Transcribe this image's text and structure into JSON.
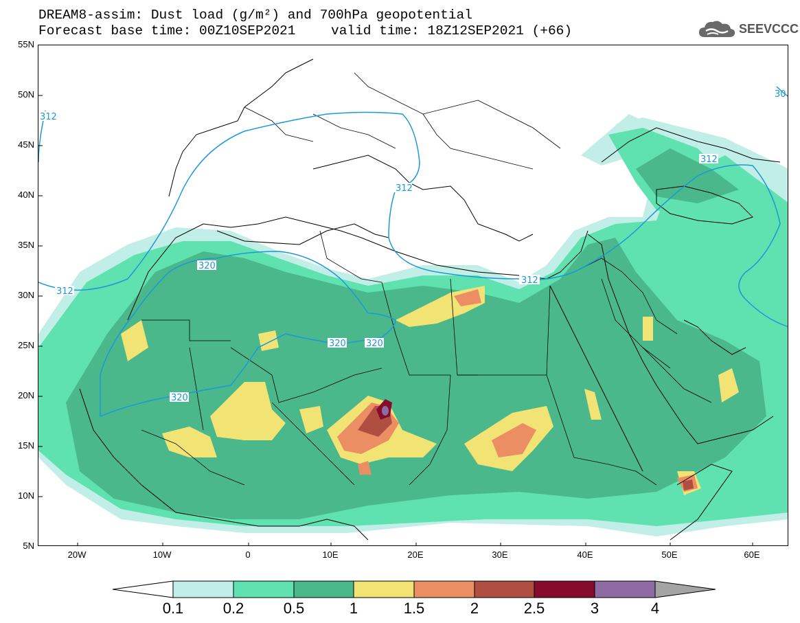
{
  "header": {
    "title_line1": "DREAM8-assim: Dust load (g/m²) and 700hPa geopotential",
    "title_line2_base": "Forecast base time: 00Z10SEP2021",
    "title_line2_valid": "valid time: 18Z12SEP2021 (+66)"
  },
  "logo": {
    "text": "SEEVCCC",
    "icon": "cloud-icon"
  },
  "map": {
    "lat_labels": [
      "55N",
      "50N",
      "45N",
      "40N",
      "35N",
      "30N",
      "25N",
      "20N",
      "15N",
      "10N",
      "5N"
    ],
    "lon_labels": [
      "20W",
      "10W",
      "0",
      "10E",
      "20E",
      "30E",
      "40E",
      "50E",
      "60E"
    ],
    "contour_labels": [
      "312",
      "312",
      "312",
      "312",
      "320",
      "320",
      "320",
      "320",
      "30"
    ],
    "colors": {
      "c01": "#c1eee6",
      "c02": "#5fe1b0",
      "c05": "#4bb88c",
      "c1": "#f1e374",
      "c15": "#ec8e64",
      "c2": "#b04e41",
      "c25": "#850c2d",
      "c3": "#8e6ca3",
      "c4": "#a4a4a4",
      "contour": "#1c98d8"
    }
  },
  "colorbar": {
    "labels": [
      "0.1",
      "0.2",
      "0.5",
      "1",
      "1.5",
      "2",
      "2.5",
      "3",
      "4"
    ]
  }
}
